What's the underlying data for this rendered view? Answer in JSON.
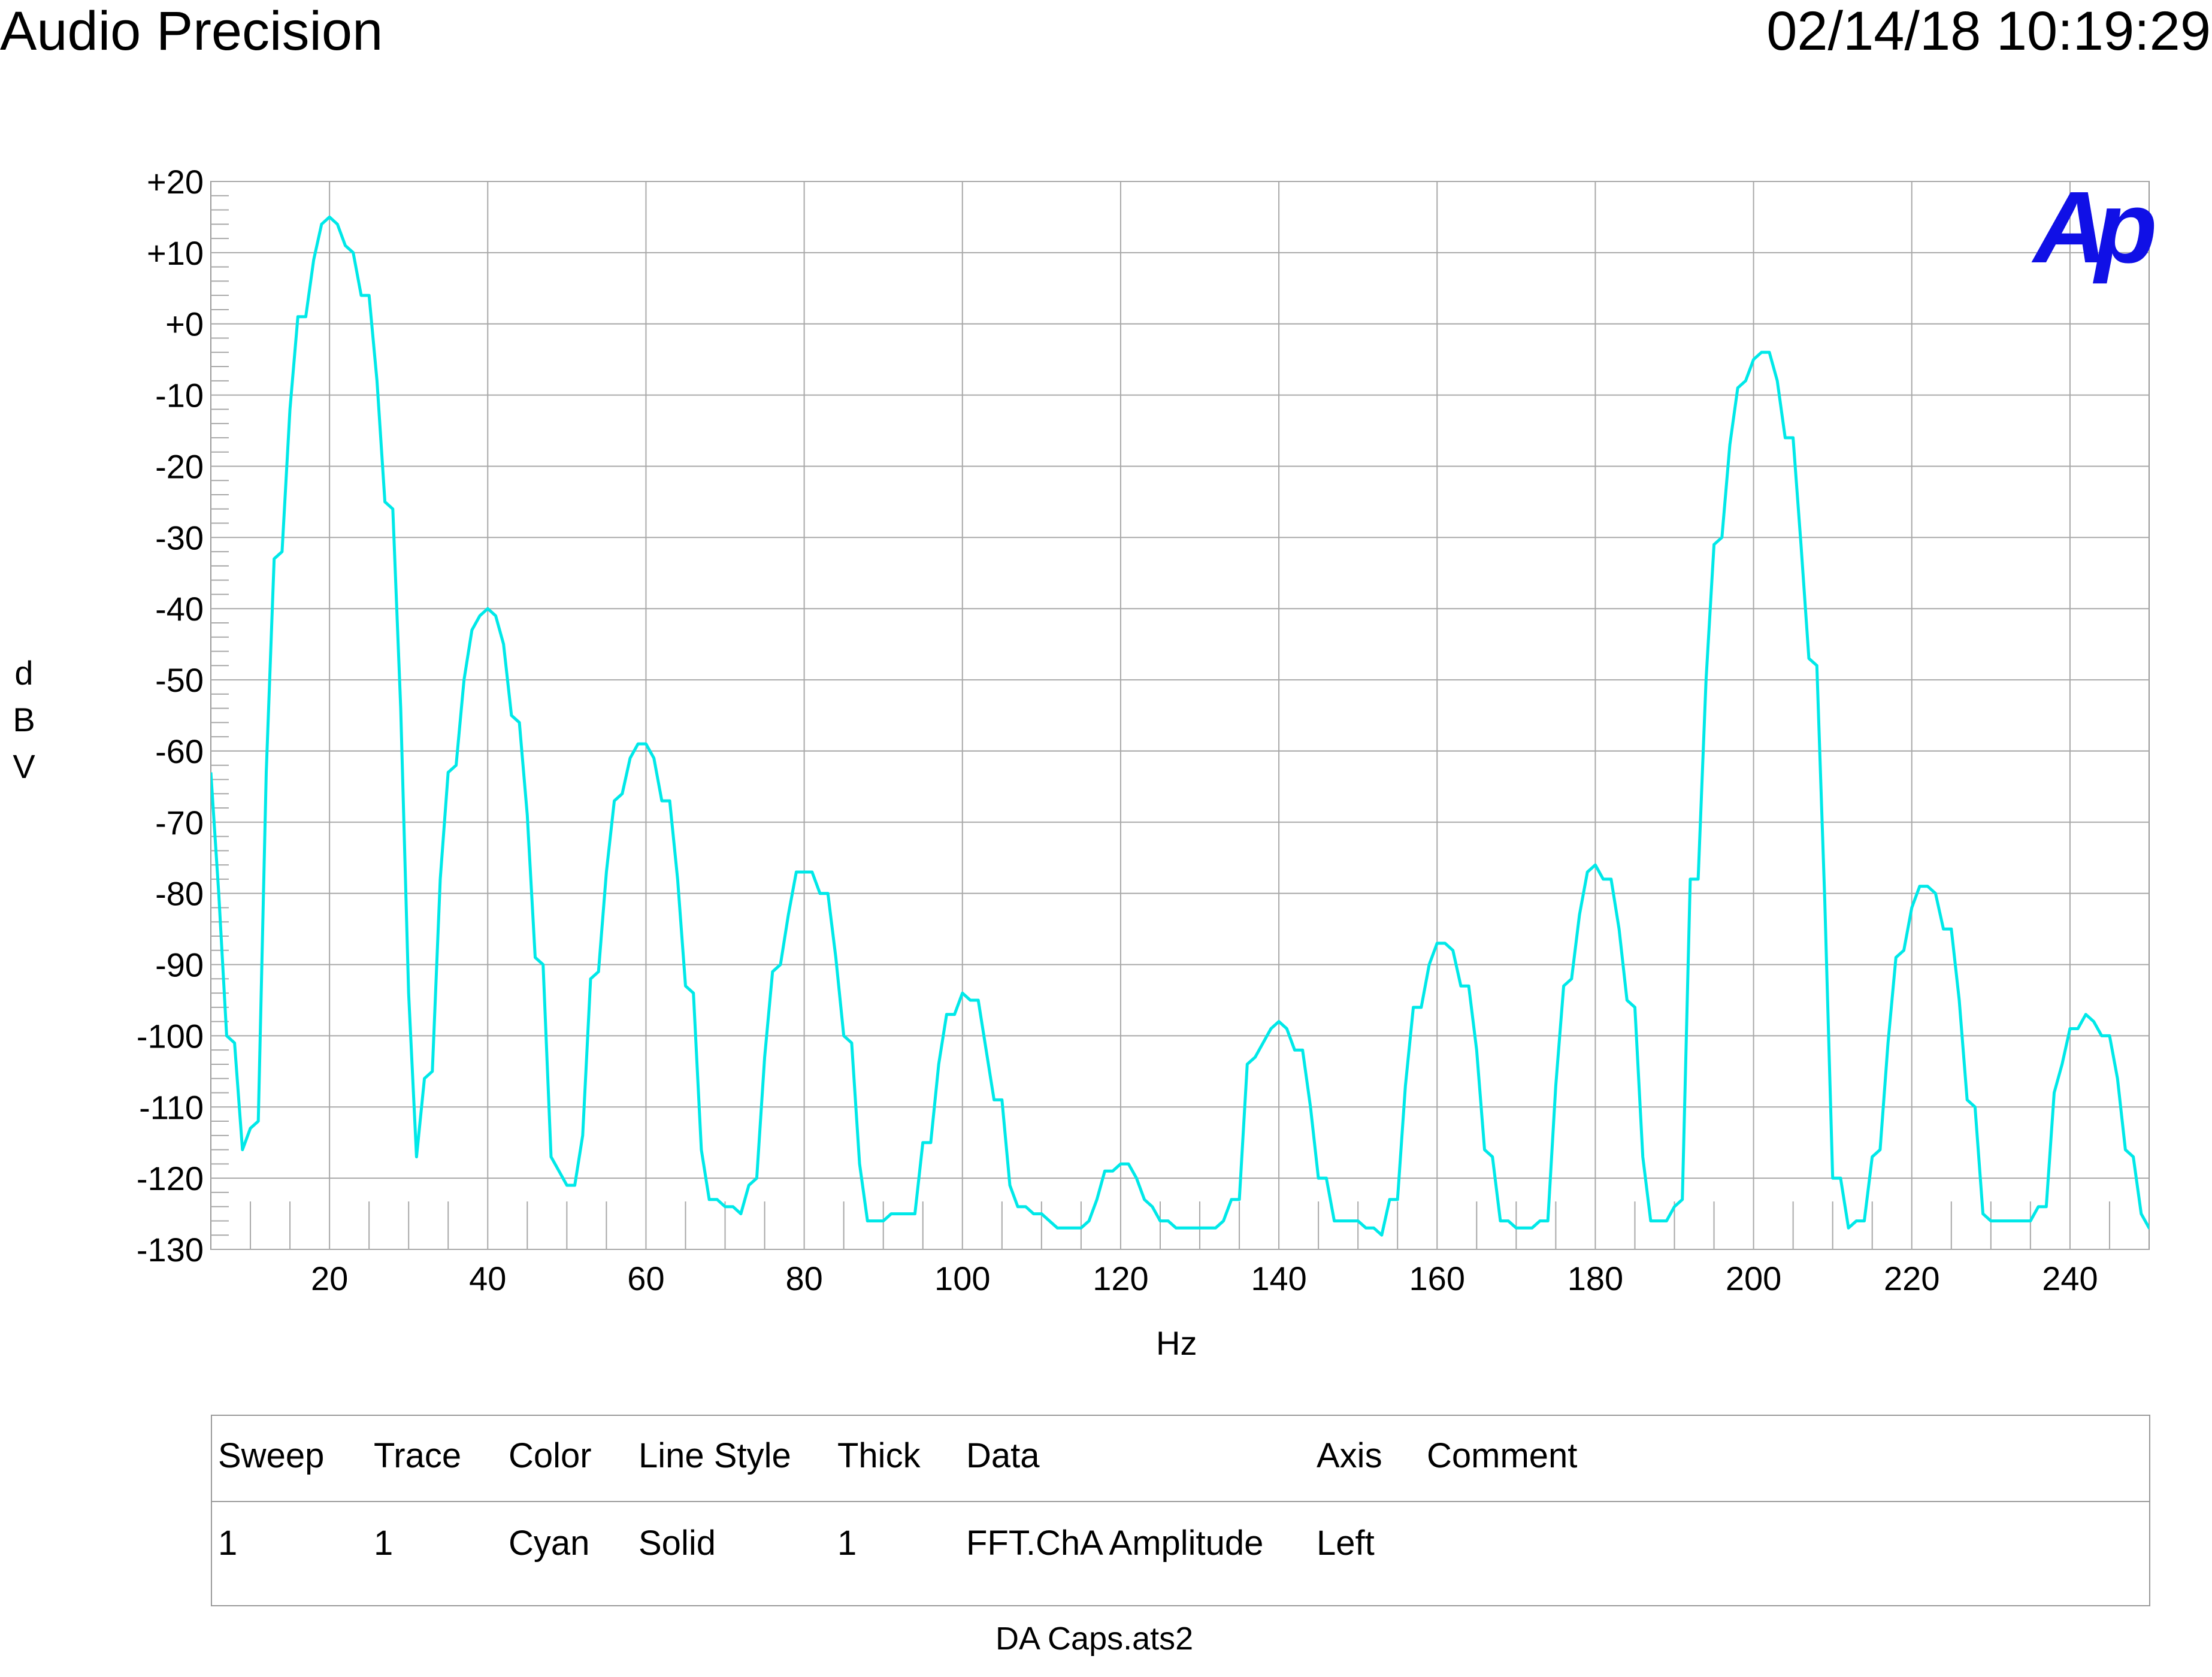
{
  "header": {
    "brand": "Audio Precision",
    "timestamp": "02/14/18 10:19:29"
  },
  "logo": {
    "text": "Ap",
    "color": "#1010e6"
  },
  "chart_data": {
    "type": "line",
    "xlabel": "Hz",
    "ylabel_letters": [
      "d",
      "B",
      "V"
    ],
    "xlim": [
      5,
      250
    ],
    "ylim": [
      -130,
      20
    ],
    "x_ticks": [
      20,
      40,
      60,
      80,
      100,
      120,
      140,
      160,
      180,
      200,
      220,
      240
    ],
    "x_tick_labels": [
      "20",
      "40",
      "60",
      "80",
      "100",
      "120",
      "140",
      "160",
      "180",
      "200",
      "220",
      "240"
    ],
    "y_ticks": [
      20,
      10,
      0,
      -10,
      -20,
      -30,
      -40,
      -50,
      -60,
      -70,
      -80,
      -90,
      -100,
      -110,
      -120,
      -130
    ],
    "y_tick_labels": [
      "+20",
      "+10",
      "+0",
      "-10",
      "-20",
      "-30",
      "-40",
      "-50",
      "-60",
      "-70",
      "-80",
      "-90",
      "-100",
      "-110",
      "-120",
      "-130"
    ],
    "grid": true,
    "series": [
      {
        "color": "#00e8e8",
        "points": [
          [
            5,
            -63
          ],
          [
            6,
            -80
          ],
          [
            7,
            -100
          ],
          [
            8,
            -101
          ],
          [
            9,
            -116
          ],
          [
            10,
            -113
          ],
          [
            11,
            -112
          ],
          [
            12,
            -63
          ],
          [
            13,
            -33
          ],
          [
            14,
            -32
          ],
          [
            15,
            -12
          ],
          [
            16,
            1
          ],
          [
            17,
            1
          ],
          [
            18,
            9
          ],
          [
            19,
            14
          ],
          [
            20,
            15
          ],
          [
            21,
            14
          ],
          [
            22,
            11
          ],
          [
            23,
            10
          ],
          [
            24,
            4
          ],
          [
            25,
            4
          ],
          [
            26,
            -8
          ],
          [
            27,
            -25
          ],
          [
            28,
            -26
          ],
          [
            29,
            -54
          ],
          [
            30,
            -94
          ],
          [
            31,
            -117
          ],
          [
            32,
            -106
          ],
          [
            33,
            -105
          ],
          [
            34,
            -78
          ],
          [
            35,
            -63
          ],
          [
            36,
            -62
          ],
          [
            37,
            -50
          ],
          [
            38,
            -43
          ],
          [
            39,
            -41
          ],
          [
            40,
            -40
          ],
          [
            41,
            -41
          ],
          [
            42,
            -45
          ],
          [
            43,
            -55
          ],
          [
            44,
            -56
          ],
          [
            45,
            -69
          ],
          [
            46,
            -89
          ],
          [
            47,
            -90
          ],
          [
            48,
            -117
          ],
          [
            49,
            -119
          ],
          [
            50,
            -121
          ],
          [
            51,
            -121
          ],
          [
            52,
            -114
          ],
          [
            53,
            -92
          ],
          [
            54,
            -91
          ],
          [
            55,
            -77
          ],
          [
            56,
            -67
          ],
          [
            57,
            -66
          ],
          [
            58,
            -61
          ],
          [
            59,
            -59
          ],
          [
            60,
            -59
          ],
          [
            61,
            -61
          ],
          [
            62,
            -67
          ],
          [
            63,
            -67
          ],
          [
            64,
            -78
          ],
          [
            65,
            -93
          ],
          [
            66,
            -94
          ],
          [
            67,
            -116
          ],
          [
            68,
            -123
          ],
          [
            69,
            -123
          ],
          [
            70,
            -124
          ],
          [
            71,
            -124
          ],
          [
            72,
            -125
          ],
          [
            73,
            -121
          ],
          [
            74,
            -120
          ],
          [
            75,
            -103
          ],
          [
            76,
            -91
          ],
          [
            77,
            -90
          ],
          [
            78,
            -83
          ],
          [
            79,
            -77
          ],
          [
            80,
            -77
          ],
          [
            81,
            -77
          ],
          [
            82,
            -80
          ],
          [
            83,
            -80
          ],
          [
            84,
            -89
          ],
          [
            85,
            -100
          ],
          [
            86,
            -101
          ],
          [
            87,
            -118
          ],
          [
            88,
            -126
          ],
          [
            89,
            -126
          ],
          [
            90,
            -126
          ],
          [
            91,
            -125
          ],
          [
            92,
            -125
          ],
          [
            93,
            -125
          ],
          [
            94,
            -125
          ],
          [
            95,
            -115
          ],
          [
            96,
            -115
          ],
          [
            97,
            -104
          ],
          [
            98,
            -97
          ],
          [
            99,
            -97
          ],
          [
            100,
            -94
          ],
          [
            101,
            -95
          ],
          [
            102,
            -95
          ],
          [
            103,
            -102
          ],
          [
            104,
            -109
          ],
          [
            105,
            -109
          ],
          [
            106,
            -121
          ],
          [
            107,
            -124
          ],
          [
            108,
            -124
          ],
          [
            109,
            -125
          ],
          [
            110,
            -125
          ],
          [
            111,
            -126
          ],
          [
            112,
            -127
          ],
          [
            113,
            -127
          ],
          [
            114,
            -127
          ],
          [
            115,
            -127
          ],
          [
            116,
            -126
          ],
          [
            117,
            -123
          ],
          [
            118,
            -119
          ],
          [
            119,
            -119
          ],
          [
            120,
            -118
          ],
          [
            121,
            -118
          ],
          [
            122,
            -120
          ],
          [
            123,
            -123
          ],
          [
            124,
            -124
          ],
          [
            125,
            -126
          ],
          [
            126,
            -126
          ],
          [
            127,
            -127
          ],
          [
            128,
            -127
          ],
          [
            129,
            -127
          ],
          [
            130,
            -127
          ],
          [
            131,
            -127
          ],
          [
            132,
            -127
          ],
          [
            133,
            -126
          ],
          [
            134,
            -123
          ],
          [
            135,
            -123
          ],
          [
            136,
            -104
          ],
          [
            137,
            -103
          ],
          [
            138,
            -101
          ],
          [
            139,
            -99
          ],
          [
            140,
            -98
          ],
          [
            141,
            -99
          ],
          [
            142,
            -102
          ],
          [
            143,
            -102
          ],
          [
            144,
            -110
          ],
          [
            145,
            -120
          ],
          [
            146,
            -120
          ],
          [
            147,
            -126
          ],
          [
            148,
            -126
          ],
          [
            149,
            -126
          ],
          [
            150,
            -126
          ],
          [
            151,
            -127
          ],
          [
            152,
            -127
          ],
          [
            153,
            -128
          ],
          [
            154,
            -123
          ],
          [
            155,
            -123
          ],
          [
            156,
            -107
          ],
          [
            157,
            -96
          ],
          [
            158,
            -96
          ],
          [
            159,
            -90
          ],
          [
            160,
            -87
          ],
          [
            161,
            -87
          ],
          [
            162,
            -88
          ],
          [
            163,
            -93
          ],
          [
            164,
            -93
          ],
          [
            165,
            -102
          ],
          [
            166,
            -116
          ],
          [
            167,
            -117
          ],
          [
            168,
            -126
          ],
          [
            169,
            -126
          ],
          [
            170,
            -127
          ],
          [
            171,
            -127
          ],
          [
            172,
            -127
          ],
          [
            173,
            -126
          ],
          [
            174,
            -126
          ],
          [
            175,
            -107
          ],
          [
            176,
            -93
          ],
          [
            177,
            -92
          ],
          [
            178,
            -83
          ],
          [
            179,
            -77
          ],
          [
            180,
            -76
          ],
          [
            181,
            -78
          ],
          [
            182,
            -78
          ],
          [
            183,
            -85
          ],
          [
            184,
            -95
          ],
          [
            185,
            -96
          ],
          [
            186,
            -117
          ],
          [
            187,
            -126
          ],
          [
            188,
            -126
          ],
          [
            189,
            -126
          ],
          [
            190,
            -124
          ],
          [
            191,
            -123
          ],
          [
            192,
            -78
          ],
          [
            193,
            -78
          ],
          [
            194,
            -50
          ],
          [
            195,
            -31
          ],
          [
            196,
            -30
          ],
          [
            197,
            -17
          ],
          [
            198,
            -9
          ],
          [
            199,
            -8
          ],
          [
            200,
            -5
          ],
          [
            201,
            -4
          ],
          [
            202,
            -4
          ],
          [
            203,
            -8
          ],
          [
            204,
            -16
          ],
          [
            205,
            -16
          ],
          [
            206,
            -31
          ],
          [
            207,
            -47
          ],
          [
            208,
            -48
          ],
          [
            209,
            -81
          ],
          [
            210,
            -120
          ],
          [
            211,
            -120
          ],
          [
            212,
            -127
          ],
          [
            213,
            -126
          ],
          [
            214,
            -126
          ],
          [
            215,
            -117
          ],
          [
            216,
            -116
          ],
          [
            217,
            -101
          ],
          [
            218,
            -89
          ],
          [
            219,
            -88
          ],
          [
            220,
            -82
          ],
          [
            221,
            -79
          ],
          [
            222,
            -79
          ],
          [
            223,
            -80
          ],
          [
            224,
            -85
          ],
          [
            225,
            -85
          ],
          [
            226,
            -95
          ],
          [
            227,
            -109
          ],
          [
            228,
            -110
          ],
          [
            229,
            -125
          ],
          [
            230,
            -126
          ],
          [
            231,
            -126
          ],
          [
            232,
            -126
          ],
          [
            233,
            -126
          ],
          [
            234,
            -126
          ],
          [
            235,
            -126
          ],
          [
            236,
            -124
          ],
          [
            237,
            -124
          ],
          [
            238,
            -108
          ],
          [
            239,
            -104
          ],
          [
            240,
            -99
          ],
          [
            241,
            -99
          ],
          [
            242,
            -97
          ],
          [
            243,
            -98
          ],
          [
            244,
            -100
          ],
          [
            245,
            -100
          ],
          [
            246,
            -106
          ],
          [
            247,
            -116
          ],
          [
            248,
            -117
          ],
          [
            249,
            -125
          ],
          [
            250,
            -127
          ],
          [
            251,
            -127
          ],
          [
            252,
            -128
          ]
        ]
      }
    ]
  },
  "legend": {
    "headers": [
      "Sweep",
      "Trace",
      "Color",
      "Line Style",
      "Thick",
      "Data",
      "Axis",
      "Comment"
    ],
    "rows": [
      [
        "1",
        "1",
        "Cyan",
        "Solid",
        "1",
        "FFT.ChA Amplitude",
        "Left",
        ""
      ]
    ]
  },
  "footer": {
    "filename": "DA Caps.ats2"
  }
}
